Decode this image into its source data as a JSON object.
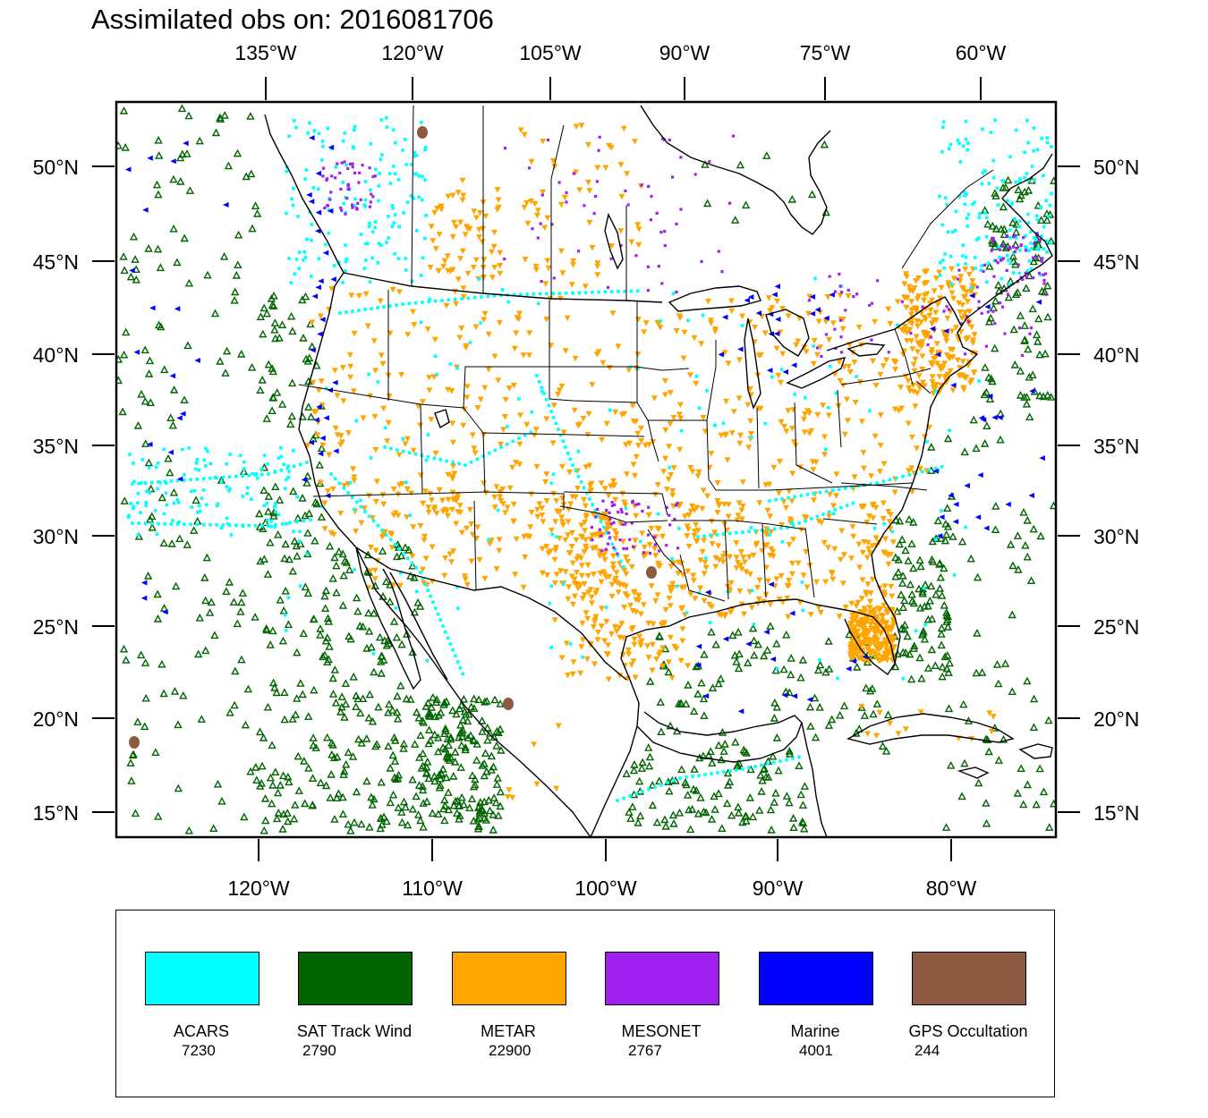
{
  "title": "Assimilated obs on: 2016081706",
  "colors": {
    "ACARS": "#00ffff",
    "SAT Track Wind": "#006400",
    "METAR": "#ffa500",
    "MESONET": "#a020f0",
    "Marine": "#0000ff",
    "GPS Occultation": "#8b5a40"
  },
  "axes": {
    "top_lon_labels": [
      "135°W",
      "120°W",
      "105°W",
      "90°W",
      "75°W",
      "60°W"
    ],
    "bottom_lon_labels": [
      "120°W",
      "110°W",
      "100°W",
      "90°W",
      "80°W"
    ],
    "lat_labels": [
      "50°N",
      "45°N",
      "40°N",
      "35°N",
      "30°N",
      "25°N",
      "20°N",
      "15°N"
    ]
  },
  "legend": [
    {
      "name": "ACARS",
      "count": "7230",
      "color": "#00ffff"
    },
    {
      "name": "SAT Track Wind",
      "count": "2790",
      "color": "#006400"
    },
    {
      "name": "METAR",
      "count": "22900",
      "color": "#ffa500"
    },
    {
      "name": "MESONET",
      "count": "2767",
      "color": "#a020f0"
    },
    {
      "name": "Marine",
      "count": "4001",
      "color": "#0000ff"
    },
    {
      "name": "GPS Occultation",
      "count": "244",
      "color": "#8b5a40"
    }
  ]
}
